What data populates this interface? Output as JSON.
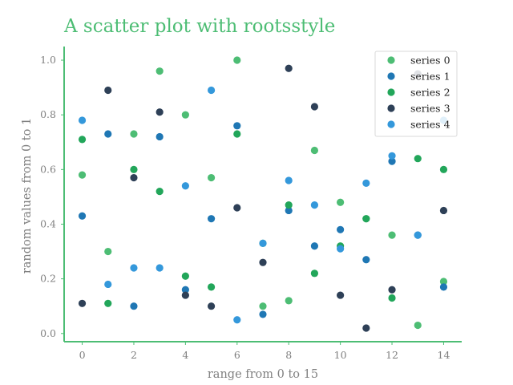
{
  "chart_data": {
    "type": "scatter",
    "title": "A scatter plot with rootsstyle",
    "xlabel": "range from 0 to 15",
    "ylabel": "random values from 0 to 1",
    "xlim": [
      -0.7,
      14.7
    ],
    "ylim": [
      -0.03,
      1.05
    ],
    "xticks": [
      "0",
      "2",
      "4",
      "6",
      "8",
      "10",
      "12",
      "14"
    ],
    "yticks": [
      "0.0",
      "0.2",
      "0.4",
      "0.6",
      "0.8",
      "1.0"
    ],
    "grid": false,
    "legend_position": "top-right",
    "x": [
      0,
      1,
      2,
      3,
      4,
      5,
      6,
      7,
      8,
      9,
      10,
      11,
      12,
      13,
      14
    ],
    "series": [
      {
        "name": "series 0",
        "color": "#4dbd74",
        "values": [
          0.58,
          0.3,
          0.73,
          0.96,
          0.8,
          0.57,
          1.0,
          0.1,
          0.12,
          0.67,
          0.48,
          0.42,
          0.36,
          0.03,
          0.19
        ]
      },
      {
        "name": "series 1",
        "color": "#1f77b4",
        "values": [
          0.43,
          0.73,
          0.1,
          0.72,
          0.16,
          0.42,
          0.76,
          0.07,
          0.45,
          0.32,
          0.38,
          0.27,
          0.63,
          0.36,
          0.17
        ]
      },
      {
        "name": "series 2",
        "color": "#22a65a",
        "values": [
          0.71,
          0.11,
          0.6,
          0.52,
          0.21,
          0.17,
          0.73,
          0.33,
          0.47,
          0.22,
          0.32,
          0.42,
          0.13,
          0.64,
          0.6
        ]
      },
      {
        "name": "series 3",
        "color": "#2e4057",
        "values": [
          0.11,
          0.89,
          0.57,
          0.81,
          0.14,
          0.1,
          0.46,
          0.26,
          0.97,
          0.83,
          0.14,
          0.02,
          0.16,
          0.95,
          0.45
        ]
      },
      {
        "name": "series 4",
        "color": "#3498db",
        "values": [
          0.78,
          0.18,
          0.24,
          0.24,
          0.54,
          0.89,
          0.05,
          0.33,
          0.56,
          0.47,
          0.31,
          0.55,
          0.65,
          0.36,
          0.78
        ]
      }
    ]
  }
}
